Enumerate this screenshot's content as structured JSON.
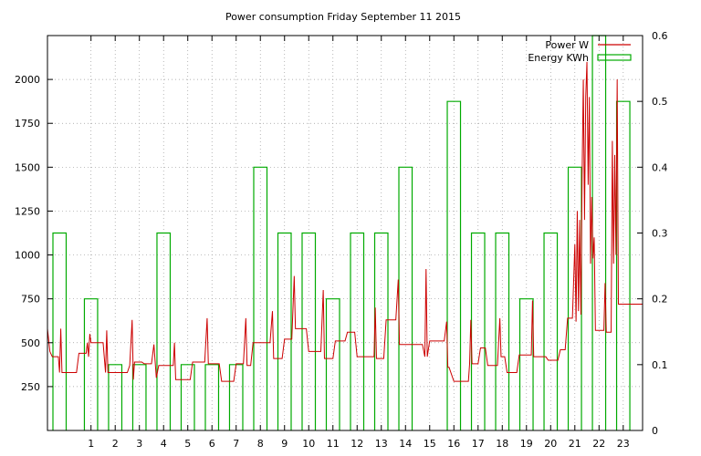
{
  "chart_data": {
    "type": "line",
    "title": "Power consumption Friday September 11 2015",
    "xlabel": "",
    "ylabel": "",
    "xlim": [
      -0.8,
      23.8
    ],
    "ylim": [
      0,
      2250
    ],
    "y2lim": [
      0,
      0.6
    ],
    "grid": true,
    "legend_position": "top-right",
    "x_ticks": [
      1,
      2,
      3,
      4,
      5,
      6,
      7,
      8,
      9,
      10,
      11,
      12,
      13,
      14,
      15,
      16,
      17,
      18,
      19,
      20,
      21,
      22,
      23
    ],
    "y_ticks": [
      250,
      500,
      750,
      1000,
      1250,
      1500,
      1750,
      2000
    ],
    "y2_ticks": [
      0,
      0.1,
      0.2,
      0.3,
      0.4,
      0.5,
      0.6
    ],
    "series": [
      {
        "name": "Power W",
        "axis": "left",
        "color": "#cc0000",
        "kind": "line",
        "points": [
          [
            -0.8,
            580
          ],
          [
            -0.7,
            450
          ],
          [
            -0.6,
            420
          ],
          [
            -0.35,
            420
          ],
          [
            -0.3,
            330
          ],
          [
            -0.25,
            580
          ],
          [
            -0.2,
            330
          ],
          [
            0.4,
            330
          ],
          [
            0.5,
            440
          ],
          [
            0.8,
            440
          ],
          [
            0.85,
            500
          ],
          [
            0.9,
            420
          ],
          [
            0.95,
            550
          ],
          [
            1.0,
            500
          ],
          [
            1.5,
            500
          ],
          [
            1.6,
            330
          ],
          [
            1.65,
            570
          ],
          [
            1.7,
            330
          ],
          [
            2.5,
            330
          ],
          [
            2.6,
            370
          ],
          [
            2.7,
            630
          ],
          [
            2.75,
            290
          ],
          [
            2.8,
            390
          ],
          [
            3.1,
            390
          ],
          [
            3.2,
            380
          ],
          [
            3.5,
            380
          ],
          [
            3.6,
            490
          ],
          [
            3.7,
            300
          ],
          [
            3.8,
            370
          ],
          [
            4.4,
            370
          ],
          [
            4.45,
            500
          ],
          [
            4.5,
            290
          ],
          [
            5.1,
            290
          ],
          [
            5.2,
            390
          ],
          [
            5.7,
            390
          ],
          [
            5.8,
            640
          ],
          [
            5.85,
            380
          ],
          [
            6.3,
            380
          ],
          [
            6.4,
            280
          ],
          [
            6.9,
            280
          ],
          [
            7.0,
            380
          ],
          [
            7.3,
            380
          ],
          [
            7.4,
            640
          ],
          [
            7.45,
            370
          ],
          [
            7.6,
            370
          ],
          [
            7.7,
            500
          ],
          [
            8.4,
            500
          ],
          [
            8.5,
            680
          ],
          [
            8.55,
            410
          ],
          [
            8.9,
            410
          ],
          [
            9.0,
            520
          ],
          [
            9.3,
            520
          ],
          [
            9.4,
            880
          ],
          [
            9.45,
            580
          ],
          [
            9.9,
            580
          ],
          [
            10.0,
            450
          ],
          [
            10.5,
            450
          ],
          [
            10.6,
            800
          ],
          [
            10.65,
            410
          ],
          [
            11.0,
            410
          ],
          [
            11.1,
            510
          ],
          [
            11.5,
            510
          ],
          [
            11.6,
            560
          ],
          [
            11.9,
            560
          ],
          [
            12.0,
            420
          ],
          [
            12.7,
            420
          ],
          [
            12.75,
            700
          ],
          [
            12.8,
            410
          ],
          [
            13.1,
            410
          ],
          [
            13.2,
            630
          ],
          [
            13.6,
            630
          ],
          [
            13.7,
            860
          ],
          [
            13.75,
            490
          ],
          [
            14.7,
            490
          ],
          [
            14.8,
            420
          ],
          [
            14.85,
            920
          ],
          [
            14.9,
            420
          ],
          [
            15.0,
            510
          ],
          [
            15.6,
            510
          ],
          [
            15.7,
            620
          ],
          [
            15.75,
            360
          ],
          [
            15.8,
            360
          ],
          [
            16.0,
            280
          ],
          [
            16.6,
            280
          ],
          [
            16.65,
            380
          ],
          [
            16.7,
            630
          ],
          [
            16.75,
            380
          ],
          [
            17.0,
            380
          ],
          [
            17.1,
            470
          ],
          [
            17.3,
            470
          ],
          [
            17.4,
            370
          ],
          [
            17.8,
            370
          ],
          [
            17.9,
            640
          ],
          [
            17.95,
            420
          ],
          [
            18.1,
            420
          ],
          [
            18.2,
            330
          ],
          [
            18.6,
            330
          ],
          [
            18.7,
            430
          ],
          [
            19.2,
            430
          ],
          [
            19.25,
            740
          ],
          [
            19.3,
            420
          ],
          [
            19.8,
            420
          ],
          [
            19.9,
            400
          ],
          [
            20.3,
            400
          ],
          [
            20.4,
            460
          ],
          [
            20.6,
            460
          ],
          [
            20.7,
            640
          ],
          [
            20.9,
            640
          ],
          [
            21.0,
            1060
          ],
          [
            21.05,
            620
          ],
          [
            21.1,
            1250
          ],
          [
            21.15,
            680
          ],
          [
            21.2,
            1200
          ],
          [
            21.25,
            660
          ],
          [
            21.3,
            1450
          ],
          [
            21.35,
            2000
          ],
          [
            21.4,
            1200
          ],
          [
            21.45,
            1900
          ],
          [
            21.5,
            2100
          ],
          [
            21.55,
            1400
          ],
          [
            21.6,
            1900
          ],
          [
            21.65,
            950
          ],
          [
            21.7,
            1330
          ],
          [
            21.75,
            980
          ],
          [
            21.8,
            1100
          ],
          [
            21.85,
            570
          ],
          [
            22.2,
            570
          ],
          [
            22.25,
            840
          ],
          [
            22.3,
            560
          ],
          [
            22.5,
            560
          ],
          [
            22.55,
            1650
          ],
          [
            22.6,
            950
          ],
          [
            22.65,
            1570
          ],
          [
            22.7,
            1000
          ],
          [
            22.75,
            2000
          ],
          [
            22.8,
            720
          ],
          [
            23.8,
            720
          ]
        ]
      },
      {
        "name": "Energy KWh",
        "axis": "right",
        "color": "#00aa00",
        "kind": "bars",
        "bars": [
          [
            -0.8,
            0.3
          ],
          [
            0.5,
            0.2
          ],
          [
            1.5,
            0.1
          ],
          [
            2.5,
            0.1
          ],
          [
            3.5,
            0.3
          ],
          [
            4.5,
            0.1
          ],
          [
            5.5,
            0.1
          ],
          [
            6.5,
            0.1
          ],
          [
            7.5,
            0.4
          ],
          [
            8.5,
            0.3
          ],
          [
            9.5,
            0.3
          ],
          [
            10.5,
            0.2
          ],
          [
            11.5,
            0.3
          ],
          [
            12.5,
            0.3
          ],
          [
            13.5,
            0.4
          ],
          [
            14.5,
            0
          ],
          [
            15.5,
            0.5
          ],
          [
            16.5,
            0.3
          ],
          [
            17.5,
            0.3
          ],
          [
            18.5,
            0.2
          ],
          [
            19.5,
            0.3
          ],
          [
            20.5,
            0.4
          ],
          [
            21.5,
            0.6
          ],
          [
            22.5,
            0.5
          ]
        ]
      }
    ]
  }
}
